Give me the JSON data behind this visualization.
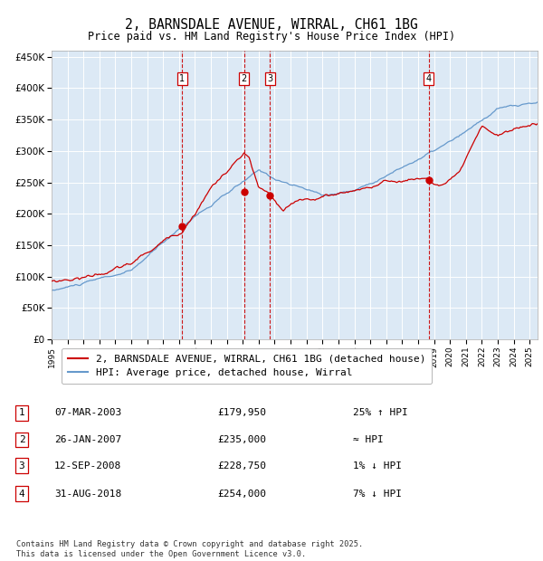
{
  "title": "2, BARNSDALE AVENUE, WIRRAL, CH61 1BG",
  "subtitle": "Price paid vs. HM Land Registry's House Price Index (HPI)",
  "background_color": "#ffffff",
  "plot_bg_color": "#dce9f5",
  "grid_color": "#ffffff",
  "ylim": [
    0,
    460000
  ],
  "yticks": [
    0,
    50000,
    100000,
    150000,
    200000,
    250000,
    300000,
    350000,
    400000,
    450000
  ],
  "ytick_labels": [
    "£0",
    "£50K",
    "£100K",
    "£150K",
    "£200K",
    "£250K",
    "£300K",
    "£350K",
    "£400K",
    "£450K"
  ],
  "legend_entries": [
    "2, BARNSDALE AVENUE, WIRRAL, CH61 1BG (detached house)",
    "HPI: Average price, detached house, Wirral"
  ],
  "legend_colors": [
    "#cc0000",
    "#6699cc"
  ],
  "sale_markers": [
    {
      "num": 1,
      "date": "07-MAR-2003",
      "price": 179950,
      "rel": "25% ↑ HPI",
      "x_year": 2003.18
    },
    {
      "num": 2,
      "date": "26-JAN-2007",
      "price": 235000,
      "rel": "≈ HPI",
      "x_year": 2007.07
    },
    {
      "num": 3,
      "date": "12-SEP-2008",
      "price": 228750,
      "rel": "1% ↓ HPI",
      "x_year": 2008.7
    },
    {
      "num": 4,
      "date": "31-AUG-2018",
      "price": 254000,
      "rel": "7% ↓ HPI",
      "x_year": 2018.67
    }
  ],
  "footer": "Contains HM Land Registry data © Crown copyright and database right 2025.\nThis data is licensed under the Open Government Licence v3.0.",
  "xmin": 1995,
  "xmax": 2025.5,
  "xtick_start": 1995,
  "xtick_end": 2026
}
